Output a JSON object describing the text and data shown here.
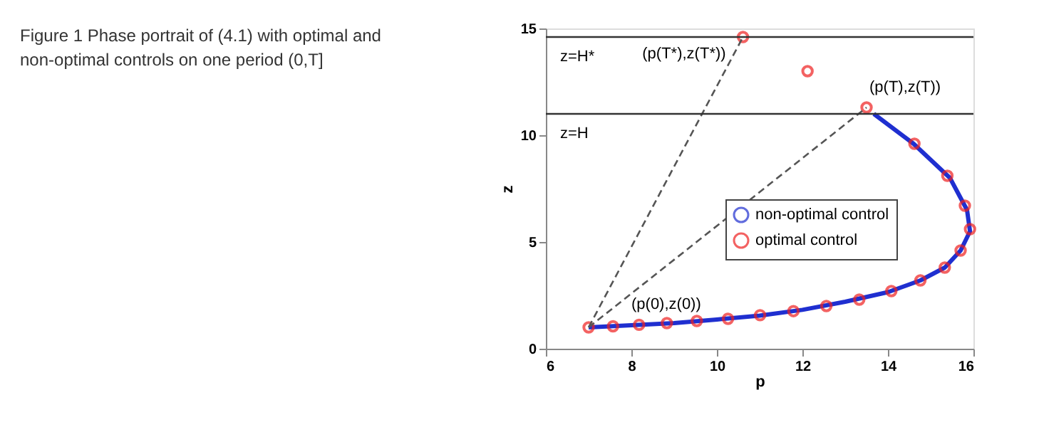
{
  "chart_data": {
    "type": "line",
    "title": "Figure 1 Phase portrait of (4.1) with optimal and non-optimal controls on one period (0,T]",
    "xlabel": "p",
    "ylabel": "z",
    "xlim": [
      6,
      16
    ],
    "ylim": [
      0,
      15
    ],
    "xticks": [
      6,
      8,
      10,
      12,
      14,
      16
    ],
    "yticks": [
      0,
      5,
      10,
      15
    ],
    "grid": false,
    "legend": "right",
    "series": [
      {
        "name": "non-optimal control",
        "color": "#1f2fd0",
        "line_style": "solid",
        "marker": "none",
        "x": [
          7,
          8,
          9,
          10,
          11,
          12,
          13,
          14,
          14.76,
          15.33,
          15.7,
          15.92,
          15.85,
          15.45,
          14.6,
          13.67
        ],
        "values": [
          1.0,
          1.1,
          1.2,
          1.37,
          1.55,
          1.82,
          2.2,
          2.65,
          3.2,
          3.8,
          4.6,
          5.5,
          6.5,
          8.0,
          9.6,
          11.0
        ]
      },
      {
        "name": "optimal control",
        "type": "scatter",
        "color": "#ee2020",
        "marker": "circle",
        "x": [
          7.0,
          7.57,
          8.18,
          8.83,
          9.53,
          10.26,
          11.01,
          11.79,
          12.56,
          13.33,
          14.08,
          14.76,
          15.33,
          15.7,
          15.92,
          15.8,
          15.39,
          14.62,
          13.5,
          12.12,
          10.61
        ],
        "values": [
          1.0,
          1.05,
          1.12,
          1.2,
          1.3,
          1.4,
          1.57,
          1.76,
          2.0,
          2.3,
          2.7,
          3.2,
          3.8,
          4.6,
          5.6,
          6.7,
          8.1,
          9.6,
          11.3,
          13.0,
          14.6
        ]
      },
      {
        "color": "#555555",
        "line_style": "dashed",
        "marker": "none",
        "x": [
          7,
          10.61
        ],
        "values": [
          1,
          14.6
        ]
      },
      {
        "color": "#555555",
        "line_style": "dashed",
        "marker": "none",
        "x": [
          7,
          13.5
        ],
        "values": [
          1,
          11.3
        ]
      }
    ],
    "ref_lines": [
      {
        "axis": "y",
        "value": 11,
        "label": "z=H",
        "color": "#333333"
      },
      {
        "axis": "y",
        "value": 14.6,
        "label": "z=H*",
        "color": "#333333"
      }
    ],
    "annotations": [
      {
        "text": "(p(T*),z(T*))",
        "x": 10.61,
        "y": 14.6
      },
      {
        "text": "(p(T),z(T))",
        "x": 13.5,
        "y": 11.3
      },
      {
        "text": "(p(0),z(0))",
        "x": 7,
        "y": 1
      }
    ]
  }
}
